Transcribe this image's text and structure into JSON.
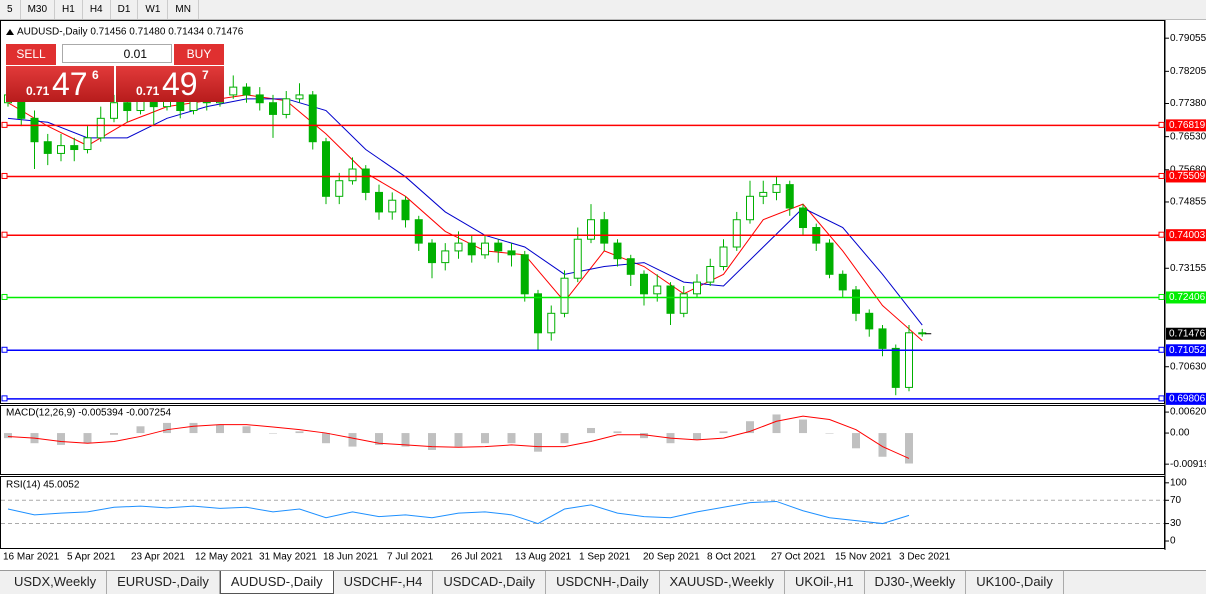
{
  "toolbar": {
    "buttons": [
      "5",
      "M30",
      "H1",
      "H4",
      "D1",
      "W1",
      "MN"
    ]
  },
  "header": "AUDUSD-,Daily  0.71456 0.71480 0.71434 0.71476",
  "trade_panel": {
    "sell": "SELL",
    "buy": "BUY",
    "lot": "0.01",
    "sell_price": {
      "big": "0.71",
      "pips": "47",
      "frac": "6"
    },
    "buy_price": {
      "big": "0.71",
      "pips": "49",
      "frac": "7"
    }
  },
  "chart": {
    "type": "candlestick",
    "ylim": [
      0.697,
      0.7947
    ],
    "yticks": [
      0.79055,
      0.78205,
      {
        "value": 0.7738,
        "label": "0.77380"
      },
      {
        "value": 0.7653,
        "label": "0.76530"
      },
      {
        "value": 0.7568,
        "label": "0.75680"
      },
      0.74855,
      0.73155,
      {
        "value": 0.7063,
        "label": "0.70630"
      }
    ],
    "levels": [
      {
        "value": 0.76819,
        "color": "#ff0000"
      },
      {
        "value": 0.75509,
        "color": "#ff0000"
      },
      {
        "value": 0.74003,
        "color": "#ff0000"
      },
      {
        "value": 0.72406,
        "color": "#00ee00"
      },
      {
        "value": 0.71052,
        "color": "#0000ff"
      },
      {
        "value": 0.69806,
        "color": "#0000ff"
      }
    ],
    "last_price": 0.71476,
    "candle_color": "#00b000",
    "candles": [
      [
        0.774,
        0.779,
        0.773,
        0.776
      ],
      [
        0.776,
        0.777,
        0.768,
        0.77
      ],
      [
        0.77,
        0.772,
        0.757,
        0.764
      ],
      [
        0.764,
        0.766,
        0.758,
        0.761
      ],
      [
        0.761,
        0.766,
        0.759,
        0.763
      ],
      [
        0.763,
        0.765,
        0.759,
        0.762
      ],
      [
        0.762,
        0.768,
        0.761,
        0.765
      ],
      [
        0.765,
        0.773,
        0.764,
        0.77
      ],
      [
        0.77,
        0.776,
        0.769,
        0.774
      ],
      [
        0.774,
        0.776,
        0.769,
        0.772
      ],
      [
        0.772,
        0.778,
        0.771,
        0.775
      ],
      [
        0.775,
        0.777,
        0.768,
        0.773
      ],
      [
        0.773,
        0.779,
        0.772,
        0.776
      ],
      [
        0.776,
        0.778,
        0.77,
        0.772
      ],
      [
        0.772,
        0.78,
        0.771,
        0.776
      ],
      [
        0.776,
        0.778,
        0.772,
        0.774
      ],
      [
        0.774,
        0.779,
        0.773,
        0.776
      ],
      [
        0.776,
        0.781,
        0.775,
        0.778
      ],
      [
        0.778,
        0.779,
        0.774,
        0.776
      ],
      [
        0.776,
        0.778,
        0.772,
        0.774
      ],
      [
        0.774,
        0.776,
        0.765,
        0.771
      ],
      [
        0.771,
        0.777,
        0.77,
        0.775
      ],
      [
        0.775,
        0.779,
        0.774,
        0.776
      ],
      [
        0.776,
        0.777,
        0.762,
        0.764
      ],
      [
        0.764,
        0.765,
        0.748,
        0.75
      ],
      [
        0.75,
        0.756,
        0.748,
        0.754
      ],
      [
        0.754,
        0.76,
        0.753,
        0.757
      ],
      [
        0.757,
        0.758,
        0.749,
        0.751
      ],
      [
        0.751,
        0.753,
        0.744,
        0.746
      ],
      [
        0.746,
        0.751,
        0.744,
        0.749
      ],
      [
        0.749,
        0.75,
        0.742,
        0.744
      ],
      [
        0.744,
        0.745,
        0.736,
        0.738
      ],
      [
        0.738,
        0.739,
        0.729,
        0.733
      ],
      [
        0.733,
        0.738,
        0.731,
        0.736
      ],
      [
        0.736,
        0.741,
        0.734,
        0.738
      ],
      [
        0.738,
        0.74,
        0.733,
        0.735
      ],
      [
        0.735,
        0.74,
        0.734,
        0.738
      ],
      [
        0.738,
        0.739,
        0.733,
        0.736
      ],
      [
        0.736,
        0.738,
        0.732,
        0.735
      ],
      [
        0.735,
        0.736,
        0.723,
        0.725
      ],
      [
        0.725,
        0.726,
        0.7105,
        0.715
      ],
      [
        0.715,
        0.722,
        0.713,
        0.72
      ],
      [
        0.72,
        0.731,
        0.719,
        0.729
      ],
      [
        0.729,
        0.742,
        0.728,
        0.739
      ],
      [
        0.739,
        0.748,
        0.738,
        0.744
      ],
      [
        0.744,
        0.746,
        0.736,
        0.738
      ],
      [
        0.738,
        0.739,
        0.732,
        0.734
      ],
      [
        0.734,
        0.735,
        0.727,
        0.73
      ],
      [
        0.73,
        0.731,
        0.722,
        0.725
      ],
      [
        0.725,
        0.73,
        0.723,
        0.727
      ],
      [
        0.727,
        0.728,
        0.717,
        0.72
      ],
      [
        0.72,
        0.727,
        0.719,
        0.725
      ],
      [
        0.725,
        0.73,
        0.724,
        0.728
      ],
      [
        0.728,
        0.734,
        0.727,
        0.732
      ],
      [
        0.732,
        0.739,
        0.731,
        0.737
      ],
      [
        0.737,
        0.746,
        0.736,
        0.744
      ],
      [
        0.744,
        0.754,
        0.743,
        0.75
      ],
      [
        0.75,
        0.754,
        0.748,
        0.751
      ],
      [
        0.751,
        0.755,
        0.749,
        0.753
      ],
      [
        0.753,
        0.754,
        0.745,
        0.747
      ],
      [
        0.747,
        0.748,
        0.74,
        0.742
      ],
      [
        0.742,
        0.743,
        0.736,
        0.738
      ],
      [
        0.738,
        0.739,
        0.729,
        0.73
      ],
      [
        0.73,
        0.731,
        0.724,
        0.726
      ],
      [
        0.726,
        0.727,
        0.718,
        0.72
      ],
      [
        0.72,
        0.721,
        0.714,
        0.716
      ],
      [
        0.716,
        0.717,
        0.709,
        0.711
      ],
      [
        0.711,
        0.712,
        0.699,
        0.701
      ],
      [
        0.701,
        0.717,
        0.7,
        0.715
      ],
      [
        0.715,
        0.716,
        0.714,
        0.7148
      ]
    ],
    "ma_x": [
      0,
      3,
      6,
      9,
      12,
      15,
      18,
      21,
      24,
      27,
      30,
      33,
      36,
      39,
      42,
      45,
      48,
      51,
      54,
      57,
      60,
      63,
      66,
      69
    ],
    "ma": [
      {
        "color": "#ff0000",
        "values": [
          0.774,
          0.768,
          0.763,
          0.769,
          0.773,
          0.7745,
          0.776,
          0.7745,
          0.766,
          0.756,
          0.75,
          0.741,
          0.736,
          0.735,
          0.723,
          0.736,
          0.732,
          0.725,
          0.73,
          0.744,
          0.748,
          0.736,
          0.722,
          0.713
        ]
      },
      {
        "color": "#0000cc",
        "values": [
          0.77,
          0.769,
          0.765,
          0.765,
          0.77,
          0.773,
          0.775,
          0.775,
          0.772,
          0.762,
          0.755,
          0.746,
          0.74,
          0.737,
          0.73,
          0.732,
          0.733,
          0.728,
          0.727,
          0.737,
          0.747,
          0.742,
          0.73,
          0.717
        ]
      }
    ],
    "x_labels": [
      "16 Mar 2021",
      "5 Apr 2021",
      "23 Apr 2021",
      "12 May 2021",
      "31 May 2021",
      "18 Jun 2021",
      "7 Jul 2021",
      "26 Jul 2021",
      "13 Aug 2021",
      "1 Sep 2021",
      "20 Sep 2021",
      "8 Oct 2021",
      "27 Oct 2021",
      "15 Nov 2021",
      "3 Dec 2021"
    ]
  },
  "macd": {
    "label": "MACD(12,26,9) -0.005394 -0.007254",
    "ylim": [
      -0.0121,
      0.008
    ],
    "yticks": [
      0.006201,
      {
        "value": 0,
        "label": "0.00"
      },
      -0.009191
    ],
    "x": [
      0,
      2,
      4,
      6,
      8,
      10,
      12,
      14,
      16,
      18,
      20,
      22,
      24,
      26,
      28,
      30,
      32,
      34,
      36,
      38,
      40,
      42,
      44,
      46,
      48,
      50,
      52,
      54,
      56,
      58,
      60,
      62,
      64,
      66,
      68
    ],
    "hist_color": "#c0c0c0",
    "signal_color": "#ff0000",
    "histogram": [
      -0.0015,
      -0.003,
      -0.0035,
      -0.003,
      -0.0005,
      0.002,
      0.003,
      0.003,
      0.0025,
      0.002,
      0.0,
      0.0005,
      -0.003,
      -0.004,
      -0.0035,
      -0.004,
      -0.005,
      -0.004,
      -0.003,
      -0.003,
      -0.0055,
      -0.003,
      0.0015,
      0.0005,
      -0.0015,
      -0.003,
      -0.002,
      0.0005,
      0.0035,
      0.0055,
      0.004,
      0.0,
      -0.0045,
      -0.007,
      -0.009
    ],
    "signal": [
      -0.001,
      -0.0015,
      -0.0025,
      -0.003,
      -0.0025,
      -0.001,
      0.001,
      0.002,
      0.0025,
      0.0025,
      0.0018,
      0.001,
      0.0,
      -0.0015,
      -0.003,
      -0.0035,
      -0.004,
      -0.0042,
      -0.004,
      -0.0035,
      -0.004,
      -0.004,
      -0.0025,
      -0.0005,
      -0.0005,
      -0.0015,
      -0.002,
      -0.0015,
      0.0005,
      0.0035,
      0.005,
      0.004,
      0.001,
      -0.004,
      -0.0075
    ]
  },
  "rsi": {
    "label": "RSI(14) 45.0052",
    "ylim": [
      -12,
      110
    ],
    "yticks": [
      100,
      70,
      30,
      0
    ],
    "levels": [
      70,
      30
    ],
    "color": "#1e90ff",
    "x": [
      0,
      2,
      4,
      6,
      8,
      10,
      12,
      14,
      16,
      18,
      20,
      22,
      24,
      26,
      28,
      30,
      32,
      34,
      36,
      38,
      40,
      42,
      44,
      46,
      48,
      50,
      52,
      54,
      56,
      58,
      60,
      62,
      64,
      66,
      68
    ],
    "values": [
      55,
      45,
      48,
      50,
      58,
      60,
      57,
      60,
      56,
      58,
      50,
      55,
      40,
      50,
      42,
      45,
      40,
      48,
      50,
      45,
      30,
      55,
      62,
      48,
      42,
      40,
      50,
      58,
      66,
      68,
      52,
      40,
      35,
      30,
      44
    ]
  },
  "tabs": [
    {
      "label": "USDX,Weekly"
    },
    {
      "label": "EURUSD-,Daily"
    },
    {
      "label": "AUDUSD-,Daily",
      "active": true
    },
    {
      "label": "USDCHF-,H4"
    },
    {
      "label": "USDCAD-,Daily"
    },
    {
      "label": "USDCNH-,Daily"
    },
    {
      "label": "XAUUSD-,Weekly"
    },
    {
      "label": "UKOil-,H1"
    },
    {
      "label": "DJ30-,Weekly"
    },
    {
      "label": "UK100-,Daily"
    }
  ]
}
